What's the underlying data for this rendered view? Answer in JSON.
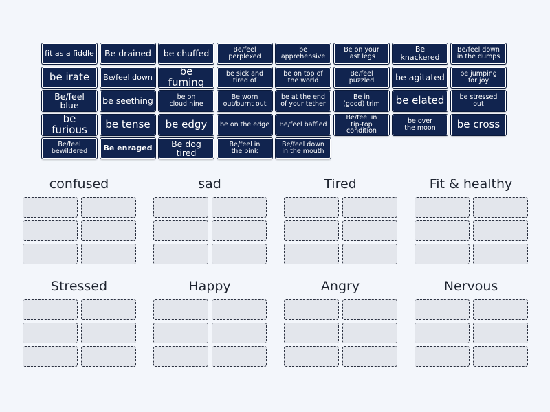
{
  "tiles": [
    {
      "text": "fit as a fiddle",
      "size": "m"
    },
    {
      "text": "Be drained",
      "size": "l"
    },
    {
      "text": "be chuffed",
      "size": "l"
    },
    {
      "text": "Be/feel\nperplexed",
      "size": "s"
    },
    {
      "text": "be\napprehensive",
      "size": "s"
    },
    {
      "text": "Be on your\nlast legs",
      "size": "s"
    },
    {
      "text": "Be knackered",
      "size": "m"
    },
    {
      "text": "Be/feel down\nin the dumps",
      "size": "s"
    },
    {
      "text": "be irate",
      "size": "xl"
    },
    {
      "text": "Be/feel down",
      "size": "m"
    },
    {
      "text": "be fuming",
      "size": "xl"
    },
    {
      "text": "be sick and\ntired of",
      "size": "s"
    },
    {
      "text": "be on top of\nthe world",
      "size": "s"
    },
    {
      "text": "Be/feel\npuzzled",
      "size": "s"
    },
    {
      "text": "be agitated",
      "size": "l"
    },
    {
      "text": "be jumping\nfor joy",
      "size": "s"
    },
    {
      "text": "Be/feel blue",
      "size": "l"
    },
    {
      "text": "be seething",
      "size": "l"
    },
    {
      "text": "be on\ncloud nine",
      "size": "s"
    },
    {
      "text": "Be worn\nout/burnt out",
      "size": "s"
    },
    {
      "text": "be at the end\nof your tether",
      "size": "s"
    },
    {
      "text": "Be in\n(good) trim",
      "size": "s"
    },
    {
      "text": "be elated",
      "size": "xl"
    },
    {
      "text": "be stressed\nout",
      "size": "s"
    },
    {
      "text": "be furious",
      "size": "xl"
    },
    {
      "text": "be tense",
      "size": "xl"
    },
    {
      "text": "be edgy",
      "size": "xl"
    },
    {
      "text": "be on the edge",
      "size": "s"
    },
    {
      "text": "Be/feel baffled",
      "size": "s"
    },
    {
      "text": "Be/feel in\ntip-top condition",
      "size": "s"
    },
    {
      "text": "be over\nthe moon",
      "size": "s"
    },
    {
      "text": "be cross",
      "size": "xl"
    },
    {
      "text": "Be/feel\nbewildered",
      "size": "s"
    },
    {
      "text": "Be enraged",
      "size": "m",
      "bold": true
    },
    {
      "text": "Be dog tired",
      "size": "l"
    },
    {
      "text": "Be/feel in\nthe pink",
      "size": "s"
    },
    {
      "text": "Be/feel down\nin the mouth",
      "size": "s"
    }
  ],
  "groups": [
    {
      "title": "confused"
    },
    {
      "title": "sad"
    },
    {
      "title": "Tired"
    },
    {
      "title": "Fit & healthy"
    },
    {
      "title": "Stressed"
    },
    {
      "title": "Happy"
    },
    {
      "title": "Angry"
    },
    {
      "title": "Nervous"
    }
  ],
  "colors": {
    "tile_bg": "#11244f",
    "tile_text": "#ffffff",
    "slot_bg": "#e3e6ec",
    "page_bg": "#f3f6fb"
  }
}
